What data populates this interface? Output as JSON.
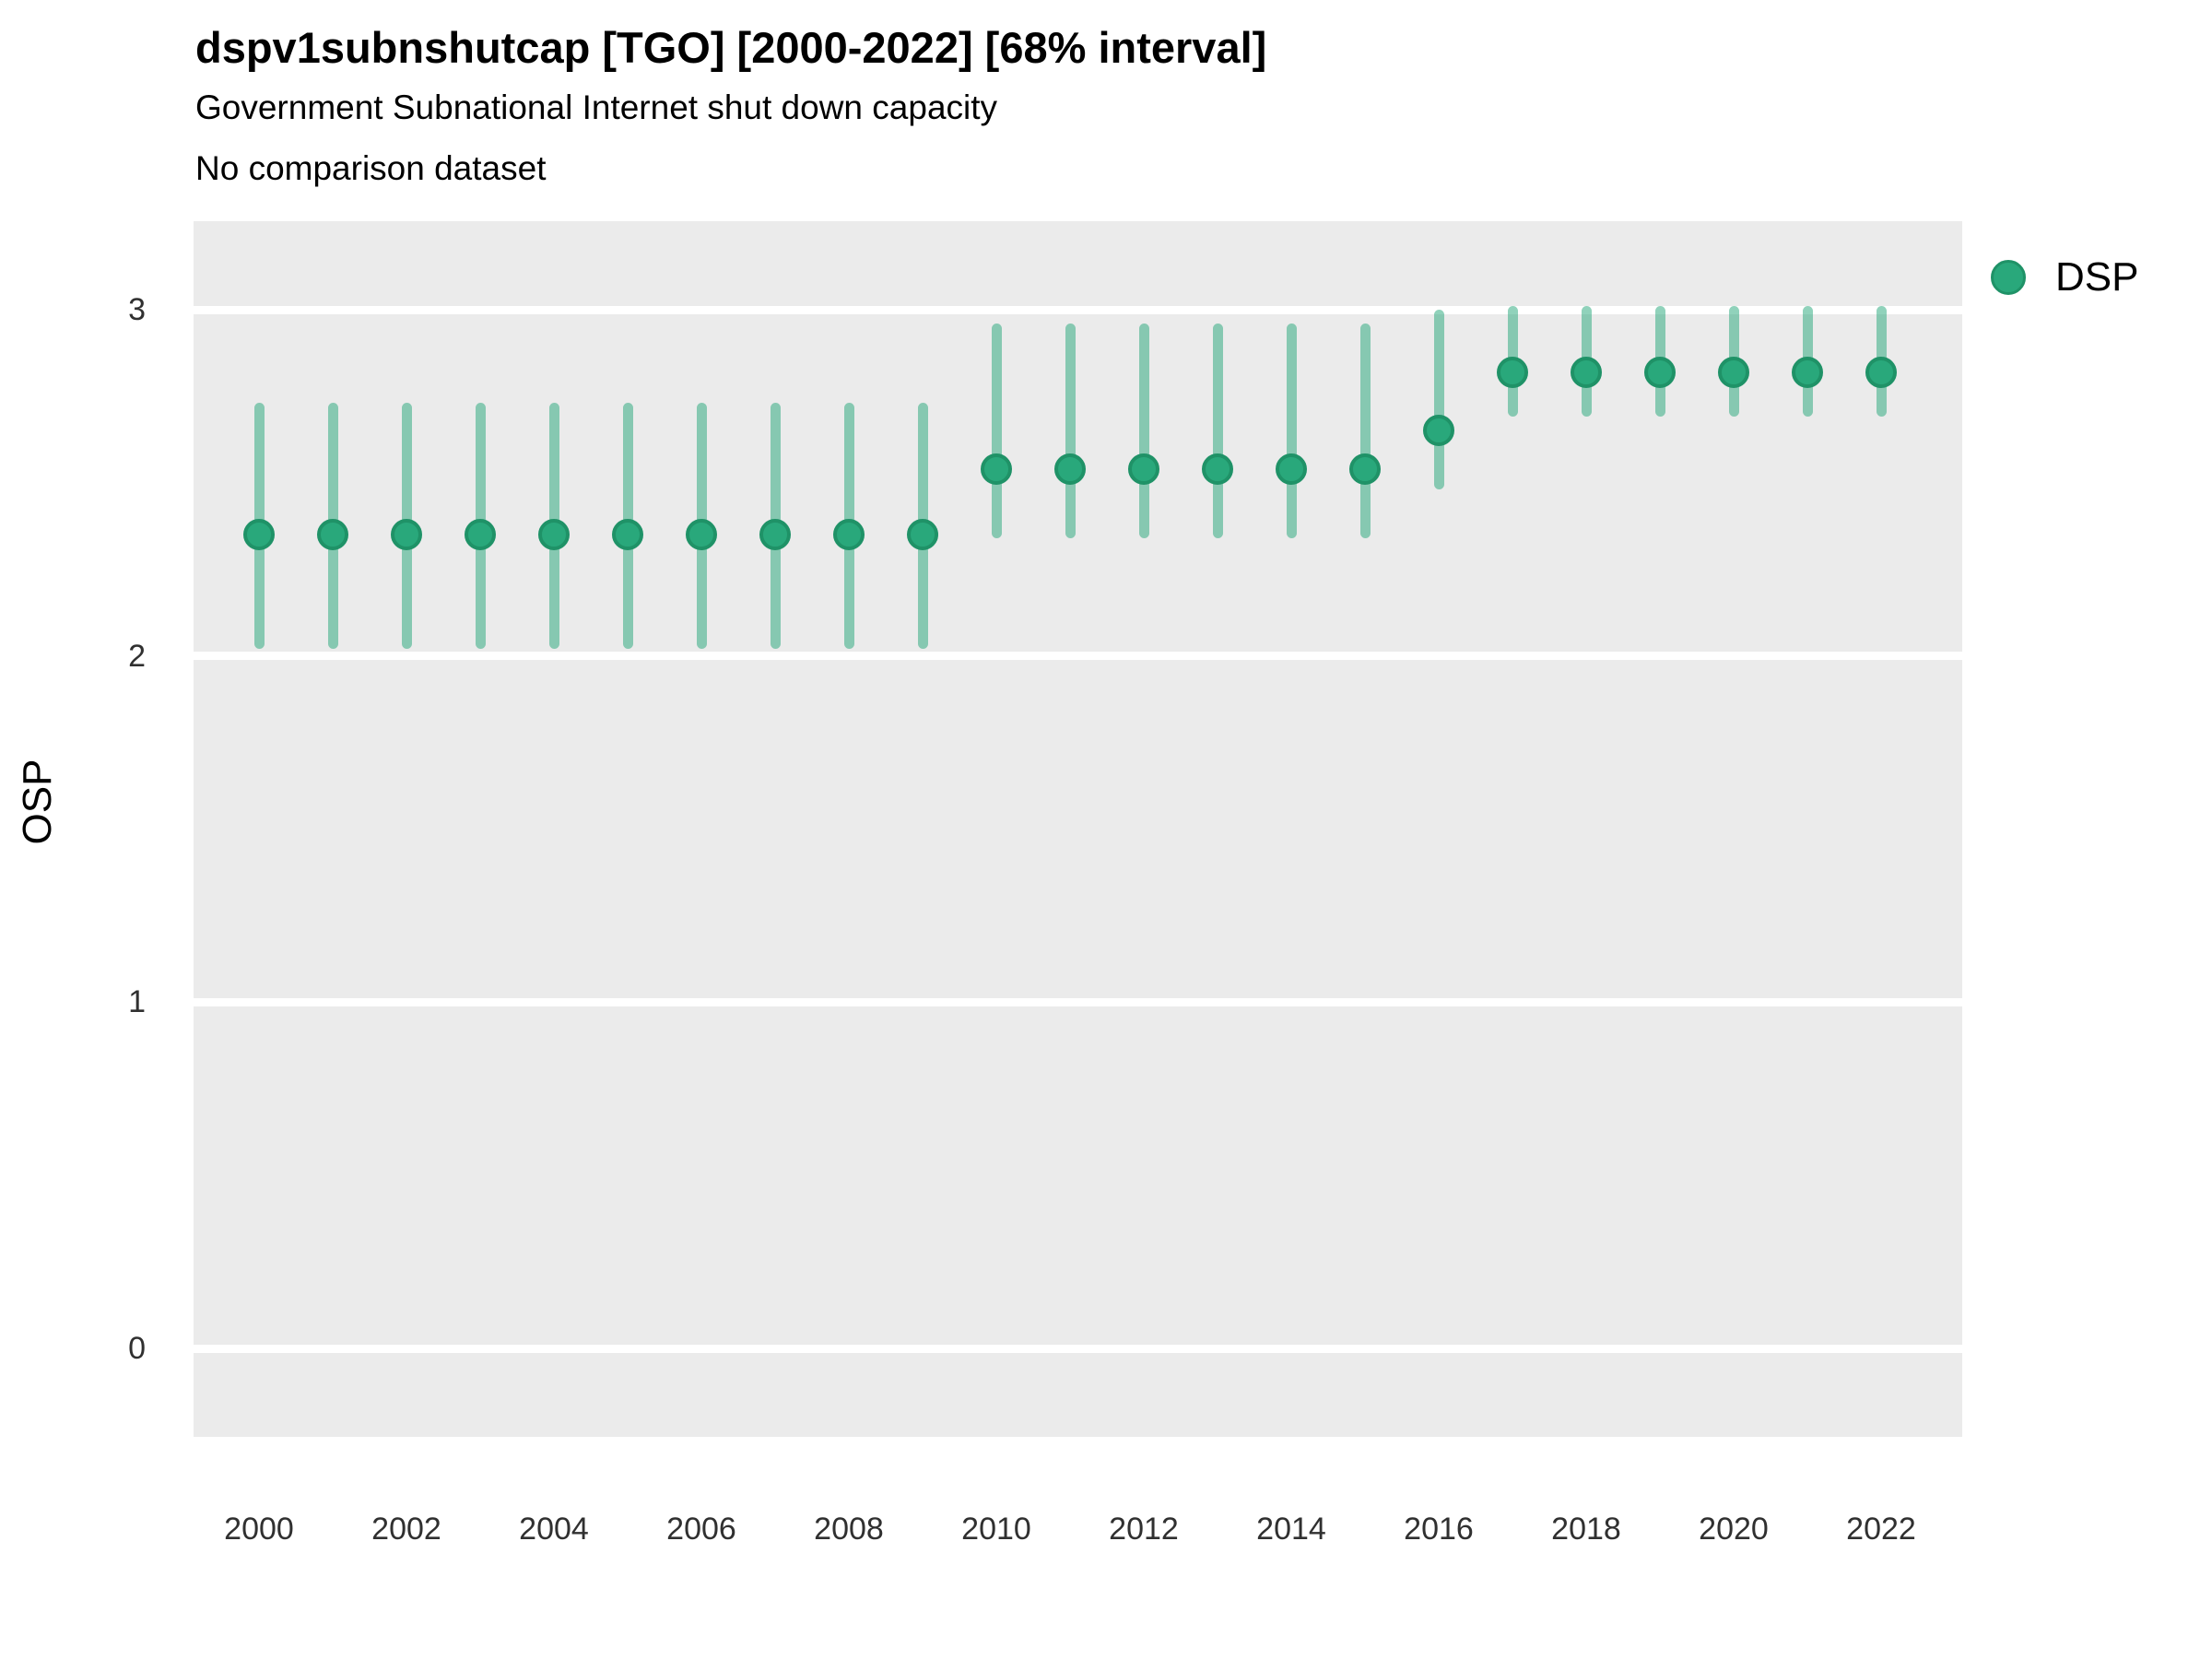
{
  "chart_data": {
    "type": "scatter",
    "variant": "pointrange",
    "title": "dspv1subnshutcap [TGO] [2000-2022] [68% interval]",
    "subtitle": "Government Subnational Internet shut down capacity",
    "note": "No comparison dataset",
    "xlabel": "",
    "ylabel": "OSP",
    "ylim": [
      -0.25,
      3.25
    ],
    "yticks": [
      0,
      1,
      2,
      3
    ],
    "xticks": [
      2000,
      2002,
      2004,
      2006,
      2008,
      2010,
      2012,
      2014,
      2016,
      2018,
      2020,
      2022
    ],
    "grid": "horizontal-white-on-grey",
    "legend": {
      "position": "right",
      "entries": [
        {
          "label": "DSP",
          "color": "#29a87b"
        }
      ]
    },
    "colors": {
      "point_fill": "#29a87b",
      "point_stroke": "#1f9267",
      "interval_bar": "rgba(42,168,124,0.52)",
      "panel_background": "#ebebeb",
      "gridline": "#ffffff"
    },
    "series": [
      {
        "name": "DSP",
        "points": [
          {
            "year": 2000,
            "value": 2.35,
            "lower": 2.02,
            "upper": 2.73
          },
          {
            "year": 2001,
            "value": 2.35,
            "lower": 2.02,
            "upper": 2.73
          },
          {
            "year": 2002,
            "value": 2.35,
            "lower": 2.02,
            "upper": 2.73
          },
          {
            "year": 2003,
            "value": 2.35,
            "lower": 2.02,
            "upper": 2.73
          },
          {
            "year": 2004,
            "value": 2.35,
            "lower": 2.02,
            "upper": 2.73
          },
          {
            "year": 2005,
            "value": 2.35,
            "lower": 2.02,
            "upper": 2.73
          },
          {
            "year": 2006,
            "value": 2.35,
            "lower": 2.02,
            "upper": 2.73
          },
          {
            "year": 2007,
            "value": 2.35,
            "lower": 2.02,
            "upper": 2.73
          },
          {
            "year": 2008,
            "value": 2.35,
            "lower": 2.02,
            "upper": 2.73
          },
          {
            "year": 2009,
            "value": 2.35,
            "lower": 2.02,
            "upper": 2.73
          },
          {
            "year": 2010,
            "value": 2.54,
            "lower": 2.34,
            "upper": 2.96
          },
          {
            "year": 2011,
            "value": 2.54,
            "lower": 2.34,
            "upper": 2.96
          },
          {
            "year": 2012,
            "value": 2.54,
            "lower": 2.34,
            "upper": 2.96
          },
          {
            "year": 2013,
            "value": 2.54,
            "lower": 2.34,
            "upper": 2.96
          },
          {
            "year": 2014,
            "value": 2.54,
            "lower": 2.34,
            "upper": 2.96
          },
          {
            "year": 2015,
            "value": 2.54,
            "lower": 2.34,
            "upper": 2.96
          },
          {
            "year": 2016,
            "value": 2.65,
            "lower": 2.48,
            "upper": 3.0
          },
          {
            "year": 2017,
            "value": 2.82,
            "lower": 2.69,
            "upper": 3.01
          },
          {
            "year": 2018,
            "value": 2.82,
            "lower": 2.69,
            "upper": 3.01
          },
          {
            "year": 2019,
            "value": 2.82,
            "lower": 2.69,
            "upper": 3.01
          },
          {
            "year": 2020,
            "value": 2.82,
            "lower": 2.69,
            "upper": 3.01
          },
          {
            "year": 2021,
            "value": 2.82,
            "lower": 2.69,
            "upper": 3.01
          },
          {
            "year": 2022,
            "value": 2.82,
            "lower": 2.69,
            "upper": 3.01
          }
        ]
      }
    ]
  }
}
